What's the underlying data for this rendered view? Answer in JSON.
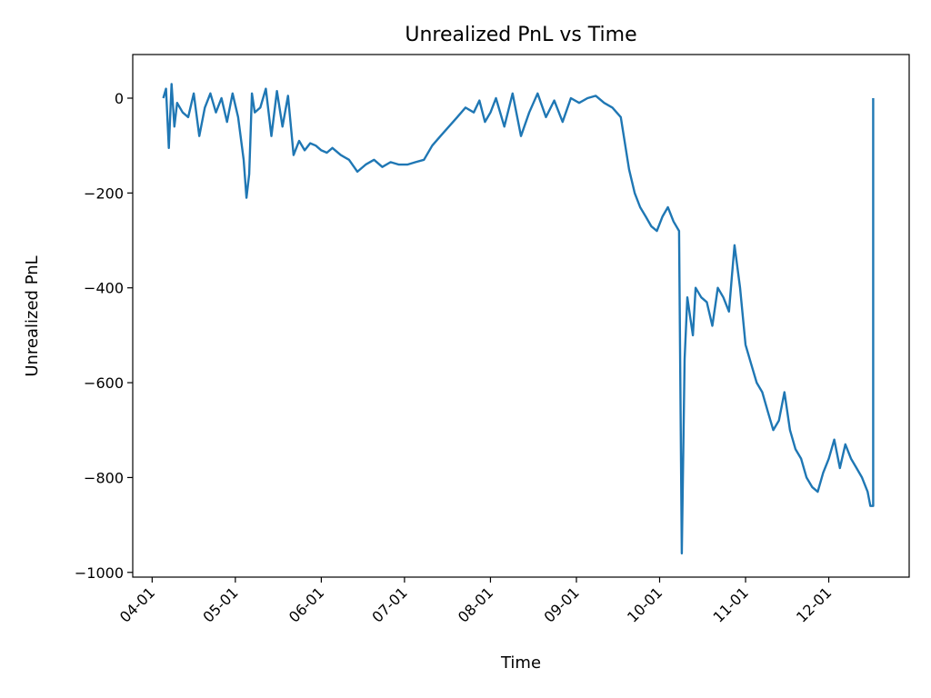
{
  "chart_data": {
    "type": "line",
    "title": "Unrealized PnL vs Time",
    "xlabel": "Time",
    "ylabel": "Unrealized PnL",
    "x_axis_type": "date",
    "xlim": [
      "2024-03-25",
      "2024-12-30"
    ],
    "ylim": [
      -1010,
      92
    ],
    "x_ticks": [
      {
        "date": "2024-04-01",
        "label": "04-01"
      },
      {
        "date": "2024-05-01",
        "label": "05-01"
      },
      {
        "date": "2024-06-01",
        "label": "06-01"
      },
      {
        "date": "2024-07-01",
        "label": "07-01"
      },
      {
        "date": "2024-08-01",
        "label": "08-01"
      },
      {
        "date": "2024-09-01",
        "label": "09-01"
      },
      {
        "date": "2024-10-01",
        "label": "10-01"
      },
      {
        "date": "2024-11-01",
        "label": "11-01"
      },
      {
        "date": "2024-12-01",
        "label": "12-01"
      }
    ],
    "y_ticks": [
      {
        "value": 0,
        "label": "0"
      },
      {
        "value": -200,
        "label": "−200"
      },
      {
        "value": -400,
        "label": "−400"
      },
      {
        "value": -600,
        "label": "−600"
      },
      {
        "value": -800,
        "label": "−800"
      },
      {
        "value": -1000,
        "label": "−1000"
      }
    ],
    "grid": false,
    "legend": "none",
    "series": [
      {
        "color": "#1f77b4",
        "x": [
          "2024-04-05",
          "2024-04-06",
          "2024-04-07",
          "2024-04-08",
          "2024-04-09",
          "2024-04-10",
          "2024-04-12",
          "2024-04-14",
          "2024-04-16",
          "2024-04-18",
          "2024-04-20",
          "2024-04-22",
          "2024-04-24",
          "2024-04-26",
          "2024-04-28",
          "2024-04-30",
          "2024-05-02",
          "2024-05-04",
          "2024-05-05",
          "2024-05-06",
          "2024-05-07",
          "2024-05-08",
          "2024-05-10",
          "2024-05-12",
          "2024-05-14",
          "2024-05-16",
          "2024-05-18",
          "2024-05-20",
          "2024-05-22",
          "2024-05-24",
          "2024-05-26",
          "2024-05-28",
          "2024-05-30",
          "2024-06-01",
          "2024-06-03",
          "2024-06-05",
          "2024-06-08",
          "2024-06-11",
          "2024-06-14",
          "2024-06-17",
          "2024-06-20",
          "2024-06-23",
          "2024-06-26",
          "2024-06-29",
          "2024-07-02",
          "2024-07-05",
          "2024-07-08",
          "2024-07-11",
          "2024-07-14",
          "2024-07-17",
          "2024-07-20",
          "2024-07-23",
          "2024-07-26",
          "2024-07-28",
          "2024-07-30",
          "2024-08-01",
          "2024-08-03",
          "2024-08-06",
          "2024-08-09",
          "2024-08-12",
          "2024-08-15",
          "2024-08-18",
          "2024-08-21",
          "2024-08-24",
          "2024-08-27",
          "2024-08-30",
          "2024-09-02",
          "2024-09-05",
          "2024-09-08",
          "2024-09-11",
          "2024-09-14",
          "2024-09-17",
          "2024-09-20",
          "2024-09-22",
          "2024-09-24",
          "2024-09-26",
          "2024-09-28",
          "2024-09-30",
          "2024-10-02",
          "2024-10-04",
          "2024-10-06",
          "2024-10-08",
          "2024-10-09",
          "2024-10-10",
          "2024-10-11",
          "2024-10-12",
          "2024-10-13",
          "2024-10-14",
          "2024-10-16",
          "2024-10-18",
          "2024-10-20",
          "2024-10-22",
          "2024-10-24",
          "2024-10-26",
          "2024-10-27",
          "2024-10-28",
          "2024-10-30",
          "2024-11-01",
          "2024-11-03",
          "2024-11-05",
          "2024-11-07",
          "2024-11-09",
          "2024-11-11",
          "2024-11-13",
          "2024-11-15",
          "2024-11-17",
          "2024-11-19",
          "2024-11-21",
          "2024-11-23",
          "2024-11-25",
          "2024-11-27",
          "2024-11-29",
          "2024-12-01",
          "2024-12-03",
          "2024-12-05",
          "2024-12-07",
          "2024-12-09",
          "2024-12-11",
          "2024-12-13",
          "2024-12-15",
          "2024-12-16",
          "2024-12-17",
          "2024-12-17"
        ],
        "y": [
          0,
          20,
          -105,
          30,
          -60,
          -10,
          -30,
          -40,
          10,
          -80,
          -20,
          10,
          -30,
          0,
          -50,
          10,
          -40,
          -130,
          -210,
          -160,
          10,
          -30,
          -20,
          20,
          -80,
          15,
          -60,
          5,
          -120,
          -90,
          -110,
          -95,
          -100,
          -110,
          -115,
          -105,
          -120,
          -130,
          -155,
          -140,
          -130,
          -145,
          -135,
          -140,
          -140,
          -135,
          -130,
          -100,
          -80,
          -60,
          -40,
          -20,
          -30,
          -5,
          -50,
          -30,
          0,
          -60,
          10,
          -80,
          -30,
          10,
          -40,
          -5,
          -50,
          0,
          -10,
          0,
          5,
          -10,
          -20,
          -40,
          -150,
          -200,
          -230,
          -250,
          -270,
          -280,
          -250,
          -230,
          -260,
          -280,
          -960,
          -550,
          -420,
          -460,
          -500,
          -400,
          -420,
          -430,
          -480,
          -400,
          -420,
          -450,
          -380,
          -310,
          -400,
          -520,
          -560,
          -600,
          -620,
          -660,
          -700,
          -680,
          -620,
          -700,
          -740,
          -760,
          -800,
          -820,
          -830,
          -790,
          -760,
          -720,
          -780,
          -730,
          -760,
          -780,
          -800,
          -830,
          -860,
          -860,
          0
        ]
      }
    ]
  }
}
